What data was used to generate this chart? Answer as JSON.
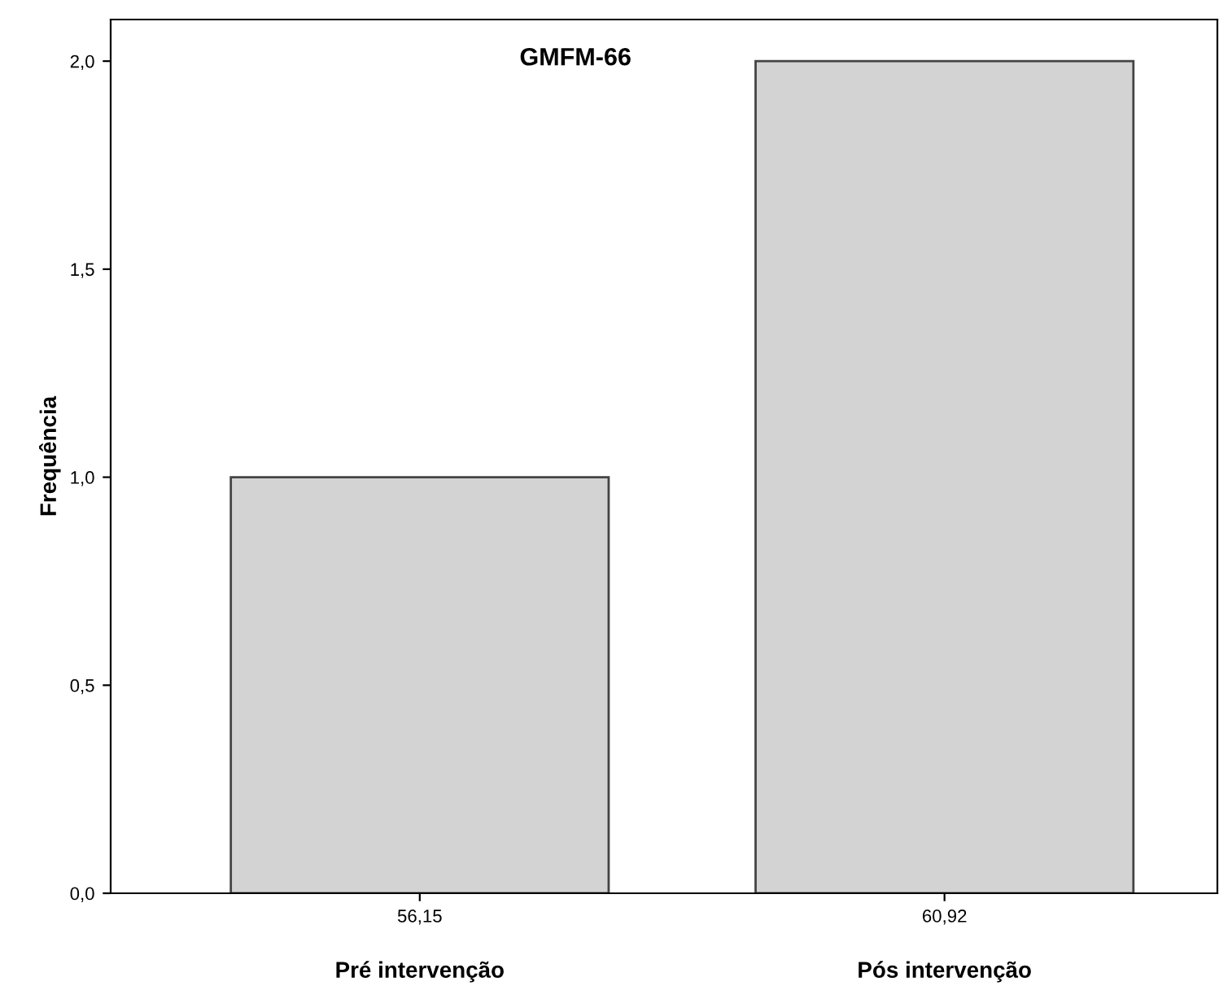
{
  "chart_data": {
    "type": "bar",
    "title": "GMFM-66",
    "ylabel": "Frequência",
    "categories": [
      "56,15",
      "60,92"
    ],
    "values": [
      1,
      2
    ],
    "color": "#d3d3d3",
    "ylim": [
      0,
      2.1
    ],
    "yticks": [
      {
        "value": 0,
        "label": "0,0"
      },
      {
        "value": 0.5,
        "label": "0,5"
      },
      {
        "value": 1,
        "label": "1,0"
      },
      {
        "value": 1.5,
        "label": "1,5"
      },
      {
        "value": 2,
        "label": "2,0"
      }
    ],
    "annotations": [
      "Pré intervenção",
      "Pós intervenção"
    ],
    "grid": false,
    "legend": false
  }
}
